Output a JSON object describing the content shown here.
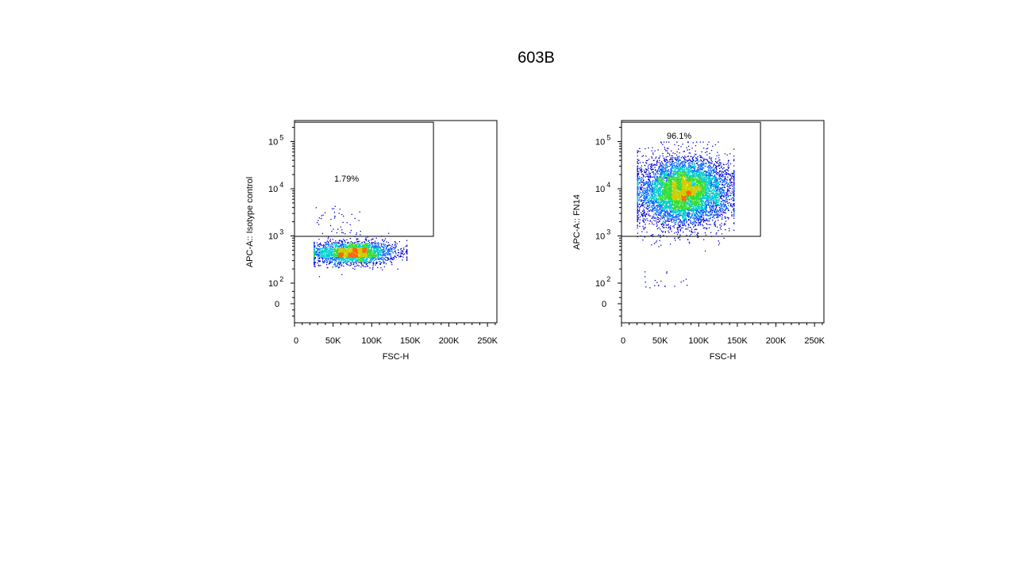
{
  "slide": {
    "title": "603B"
  },
  "chart_data": [
    {
      "type": "scatter",
      "title": "",
      "xlabel": "FSC-H",
      "ylabel": "APC-A:: Isotype control",
      "xlim": [
        0,
        262144
      ],
      "x_ticks": [
        "0",
        "50K",
        "100K",
        "150K",
        "200K",
        "250K"
      ],
      "y_ticks": [
        "0",
        "10^2",
        "10^3",
        "10^4",
        "10^5"
      ],
      "y_scale": "biexponential",
      "gate": {
        "x_range": [
          0,
          180000
        ],
        "y_range": [
          1000,
          262144
        ],
        "label": "1.79%"
      },
      "population": {
        "x_center": 75000,
        "x_spread": 28000,
        "x_range": [
          25000,
          145000
        ],
        "y_center": 450,
        "y_log_spread": 0.12,
        "y_range": [
          100,
          4000
        ],
        "count": 2600
      },
      "color_scale": [
        "#0000cc",
        "#0066ff",
        "#00cccc",
        "#33dd33",
        "#cccc00",
        "#ff6600"
      ]
    },
    {
      "type": "scatter",
      "title": "",
      "xlabel": "FSC-H",
      "ylabel": "APC-A:: FN14",
      "xlim": [
        0,
        262144
      ],
      "x_ticks": [
        "0",
        "50K",
        "100K",
        "150K",
        "200K",
        "250K"
      ],
      "y_ticks": [
        "0",
        "10^2",
        "10^3",
        "10^4",
        "10^5"
      ],
      "y_scale": "biexponential",
      "gate": {
        "x_range": [
          0,
          180000
        ],
        "y_range": [
          1000,
          262144
        ],
        "label": "96.1%"
      },
      "population": {
        "x_center": 80000,
        "x_spread": 30000,
        "x_range": [
          20000,
          145000
        ],
        "y_center": 9000,
        "y_log_spread": 0.35,
        "y_range": [
          80,
          100000
        ],
        "count": 7000
      },
      "color_scale": [
        "#0000cc",
        "#0066ff",
        "#00cccc",
        "#33dd33",
        "#cccc00",
        "#ff6600"
      ]
    }
  ]
}
